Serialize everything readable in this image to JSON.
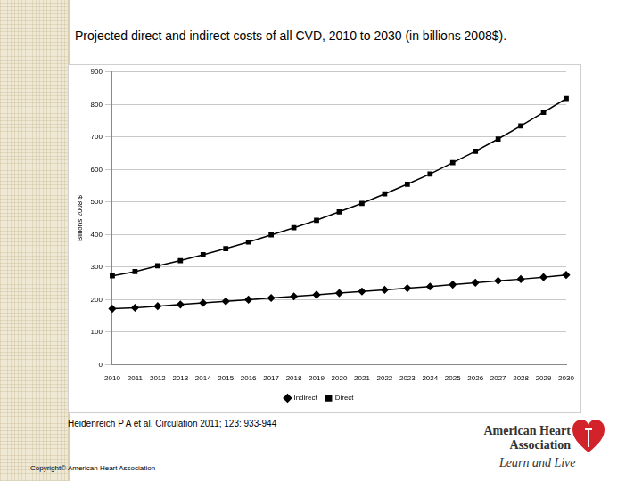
{
  "chart_data": {
    "type": "line",
    "title": "Projected direct and indirect costs of all CVD, 2010 to 2030 (in billions 2008$).",
    "y_label": "Billions 2008 $",
    "categories": [
      "2010",
      "2011",
      "2012",
      "2013",
      "2014",
      "2015",
      "2016",
      "2017",
      "2018",
      "2019",
      "2020",
      "2021",
      "2022",
      "2023",
      "2024",
      "2025",
      "2026",
      "2027",
      "2028",
      "2029",
      "2030"
    ],
    "series": [
      {
        "name": "Indirect",
        "color": "#000000",
        "marker": "diamond",
        "values": [
          172,
          175,
          180,
          185,
          190,
          195,
          200,
          205,
          210,
          215,
          220,
          225,
          230,
          235,
          240,
          246,
          252,
          258,
          263,
          269,
          276
        ]
      },
      {
        "name": "Direct",
        "color": "#000000",
        "marker": "square",
        "values": [
          273,
          286,
          304,
          320,
          338,
          357,
          377,
          399,
          421,
          444,
          470,
          496,
          525,
          555,
          586,
          621,
          656,
          694,
          734,
          776,
          818
        ]
      }
    ],
    "ylim": [
      0,
      900
    ],
    "yticks": [
      0,
      100,
      200,
      300,
      400,
      500,
      600,
      700,
      800,
      900
    ],
    "grid": true,
    "legend": "bottom"
  },
  "slide": {
    "citation": "Heidenreich P A et al. Circulation 2011; 123: 933-944",
    "copyright": "Copyright© American Heart Association",
    "logo_name": "American Heart Association",
    "logo_tagline": "Learn and Live"
  }
}
